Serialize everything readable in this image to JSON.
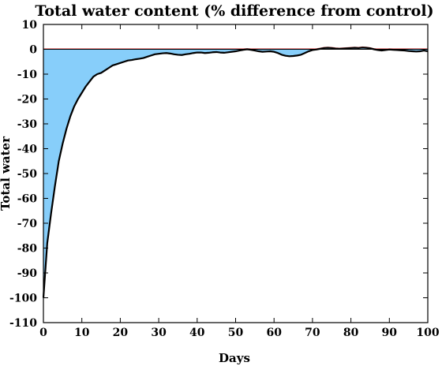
{
  "chart_data": {
    "type": "area",
    "title": "Total water content (% difference from control)",
    "xlabel": "Days",
    "ylabel": "Total water",
    "xlim": [
      0,
      100
    ],
    "ylim": [
      -110,
      10
    ],
    "xticks": [
      0,
      10,
      20,
      30,
      40,
      50,
      60,
      70,
      80,
      90,
      100
    ],
    "yticks": [
      10,
      0,
      -10,
      -20,
      -30,
      -40,
      -50,
      -60,
      -70,
      -80,
      -90,
      -100,
      -110
    ],
    "grid": false,
    "legend": "none",
    "colors": {
      "fill": "#87cefa",
      "line": "#000000",
      "positive_trace": "#cc0000"
    },
    "series": [
      {
        "x": [
          0,
          1,
          2,
          3,
          4,
          5,
          6,
          7,
          8,
          9,
          10,
          11,
          12,
          13,
          14,
          15,
          16,
          17,
          18,
          19,
          20,
          21,
          22,
          23,
          24,
          25,
          26,
          27,
          28,
          29,
          30,
          31,
          32,
          33,
          34,
          35,
          36,
          37,
          38,
          39,
          40,
          41,
          42,
          43,
          44,
          45,
          46,
          47,
          48,
          49,
          50,
          51,
          52,
          53,
          54,
          55,
          56,
          57,
          58,
          59,
          60,
          61,
          62,
          63,
          64,
          65,
          66,
          67,
          68,
          69,
          70,
          71,
          72,
          73,
          74,
          75,
          76,
          77,
          78,
          79,
          80,
          81,
          82,
          83,
          84,
          85,
          86,
          87,
          88,
          89,
          90,
          91,
          92,
          93,
          94,
          95,
          96,
          97,
          98,
          99,
          100
        ],
        "values": [
          -100,
          -78,
          -66,
          -55,
          -45,
          -38,
          -32,
          -27,
          -23,
          -20,
          -17.5,
          -15,
          -13,
          -11,
          -10,
          -9.5,
          -8.5,
          -7.5,
          -6.5,
          -6,
          -5.5,
          -5,
          -4.5,
          -4.3,
          -4,
          -3.8,
          -3.5,
          -3,
          -2.5,
          -2,
          -1.8,
          -1.6,
          -1.5,
          -1.7,
          -2,
          -2.2,
          -2.3,
          -2,
          -1.8,
          -1.5,
          -1.3,
          -1.3,
          -1.5,
          -1.4,
          -1.2,
          -1.1,
          -1.3,
          -1.4,
          -1.2,
          -1.0,
          -0.8,
          -0.5,
          -0.2,
          0.0,
          -0.2,
          -0.5,
          -0.8,
          -1.0,
          -0.9,
          -0.8,
          -1.0,
          -1.5,
          -2.2,
          -2.6,
          -2.8,
          -2.7,
          -2.5,
          -2.2,
          -1.5,
          -0.8,
          -0.3,
          -0.1,
          0.2,
          0.5,
          0.6,
          0.5,
          0.3,
          0.2,
          0.3,
          0.4,
          0.5,
          0.6,
          0.5,
          0.7,
          0.6,
          0.4,
          0.0,
          -0.3,
          -0.5,
          -0.3,
          -0.1,
          -0.2,
          -0.3,
          -0.4,
          -0.5,
          -0.7,
          -0.8,
          -0.9,
          -0.8,
          -0.5,
          -0.8
        ]
      }
    ]
  }
}
